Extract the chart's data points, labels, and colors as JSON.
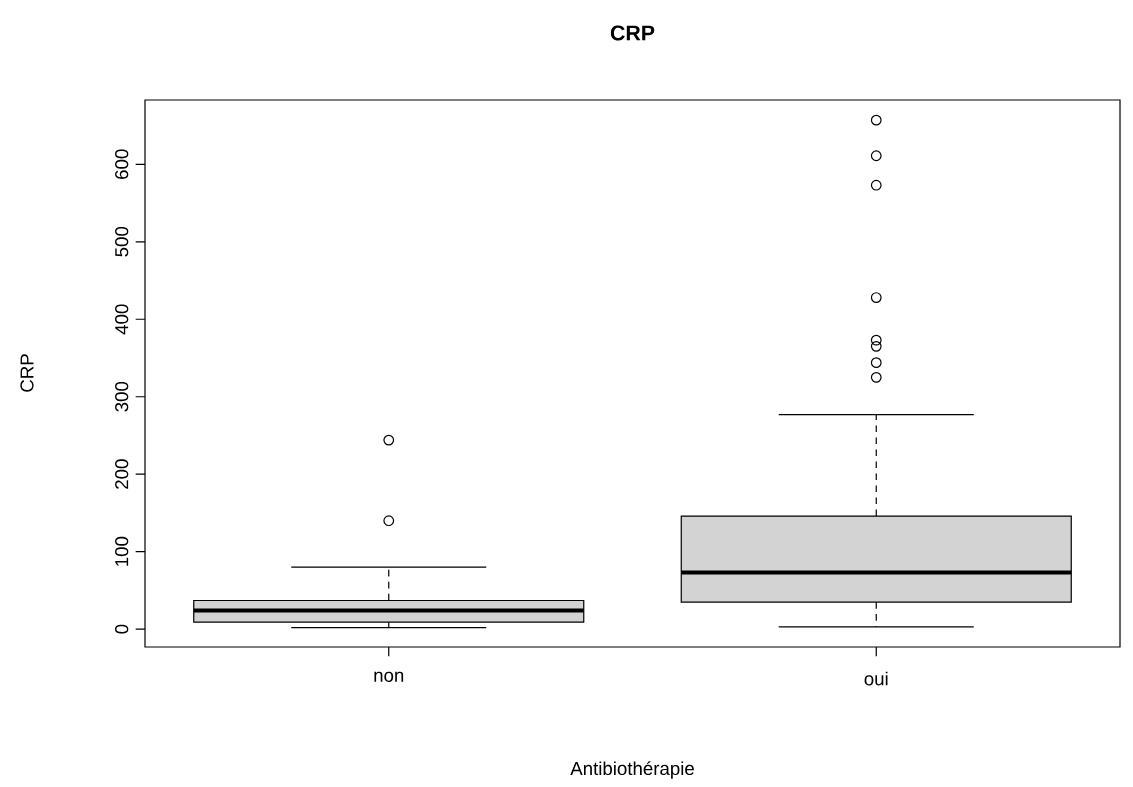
{
  "chart_data": {
    "type": "box",
    "title": "CRP",
    "xlabel": "Antibiothérapie",
    "ylabel": "CRP",
    "categories": [
      "non",
      "oui"
    ],
    "color": "#d3d3d3",
    "marker": "circle",
    "boxes": [
      {
        "low": 2,
        "q1": 9,
        "median": 24,
        "q3": 37,
        "high": 80,
        "outliers": [
          140,
          244
        ]
      },
      {
        "low": 3,
        "q1": 35,
        "median": 73,
        "q3": 146,
        "high": 277,
        "outliers": [
          325,
          344,
          365,
          373,
          428,
          573,
          611,
          657
        ]
      }
    ],
    "ylim": [
      -23,
      683
    ],
    "yticks": [
      0,
      100,
      200,
      300,
      400,
      500,
      600
    ]
  }
}
